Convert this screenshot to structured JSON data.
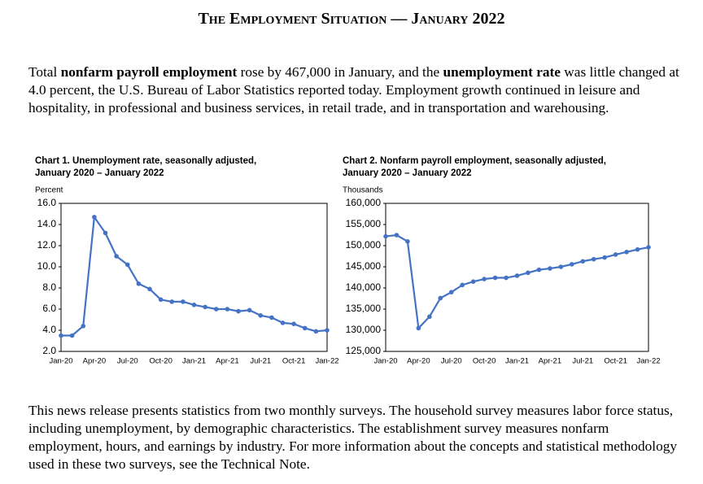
{
  "document": {
    "title": "The Employment Situation — January 2022",
    "intro": [
      {
        "text": "Total "
      },
      {
        "text": "nonfarm payroll employment",
        "bold": true
      },
      {
        "text": " rose by 467,000 in January, and the "
      },
      {
        "text": "unemployment rate",
        "bold": true
      },
      {
        "text": " was little changed at 4.0 percent, the U.S. Bureau of Labor Statistics reported today. Employment growth continued in leisure and hospitality, in professional and business services, in retail trade, and in transportation and warehousing."
      }
    ],
    "closing": "This news release presents statistics from two monthly surveys. The household survey measures labor force status, including unemployment, by demographic characteristics. The establishment survey measures nonfarm employment, hours, and earnings by industry. For more information about the concepts and statistical methodology used in these two surveys, see the Technical Note."
  },
  "chart_data": [
    {
      "type": "line",
      "title": "Chart 1. Unemployment rate, seasonally adjusted,",
      "subtitle": "January 2020 – January 2022",
      "y_label": "Percent",
      "categories": [
        "Jan-20",
        null,
        null,
        "Apr-20",
        null,
        null,
        "Jul-20",
        null,
        null,
        "Oct-20",
        null,
        null,
        "Jan-21",
        null,
        null,
        "Apr-21",
        null,
        null,
        "Jul-21",
        null,
        null,
        "Oct-21",
        null,
        null,
        "Jan-22"
      ],
      "values": [
        3.5,
        3.5,
        4.4,
        14.7,
        13.2,
        11.0,
        10.2,
        8.4,
        7.9,
        6.9,
        6.7,
        6.7,
        6.4,
        6.2,
        6.0,
        6.0,
        5.8,
        5.9,
        5.4,
        5.2,
        4.7,
        4.6,
        4.2,
        3.9,
        4.0
      ],
      "color": "#4472c4",
      "ylim": [
        2,
        16
      ],
      "yticks": [
        {
          "value": 2,
          "label": "2.0"
        },
        {
          "value": 4,
          "label": "4.0"
        },
        {
          "value": 6,
          "label": "6.0"
        },
        {
          "value": 8,
          "label": "8.0"
        },
        {
          "value": 10,
          "label": "10.0"
        },
        {
          "value": 12,
          "label": "12.0"
        },
        {
          "value": 14,
          "label": "14.0"
        },
        {
          "value": 16,
          "label": "16.0"
        }
      ]
    },
    {
      "type": "line",
      "title": "Chart 2. Nonfarm payroll employment, seasonally adjusted,",
      "subtitle": "January 2020 – January 2022",
      "y_label": "Thousands",
      "categories": [
        "Jan-20",
        null,
        null,
        "Apr-20",
        null,
        null,
        "Jul-20",
        null,
        null,
        "Oct-20",
        null,
        null,
        "Jan-21",
        null,
        null,
        "Apr-21",
        null,
        null,
        "Jul-21",
        null,
        null,
        "Oct-21",
        null,
        null,
        "Jan-22"
      ],
      "values": [
        152200,
        152500,
        151000,
        130500,
        133200,
        137600,
        139000,
        140700,
        141500,
        142100,
        142400,
        142400,
        142900,
        143600,
        144300,
        144600,
        145000,
        145600,
        146300,
        146800,
        147200,
        147900,
        148500,
        149100,
        149600
      ],
      "color": "#4472c4",
      "ylim": [
        125000,
        160000
      ],
      "yticks": [
        {
          "value": 125000,
          "label": "125,000"
        },
        {
          "value": 130000,
          "label": "130,000"
        },
        {
          "value": 135000,
          "label": "135,000"
        },
        {
          "value": 140000,
          "label": "140,000"
        },
        {
          "value": 145000,
          "label": "145,000"
        },
        {
          "value": 150000,
          "label": "150,000"
        },
        {
          "value": 155000,
          "label": "155,000"
        },
        {
          "value": 160000,
          "label": "160,000"
        }
      ]
    }
  ]
}
